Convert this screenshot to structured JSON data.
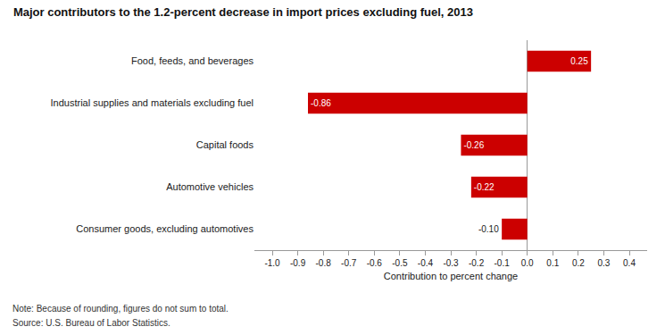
{
  "chart_data": {
    "type": "bar",
    "orientation": "horizontal",
    "title": "Major contributors to the 1.2-percent decrease in import prices excluding fuel, 2013",
    "categories": [
      "Consumer goods, excluding automotives",
      "Automotive vehicles",
      "Capital foods",
      "Industrial supplies and materials excluding fuel",
      "Food, feeds, and beverages"
    ],
    "values": [
      -0.1,
      -0.22,
      -0.26,
      -0.86,
      0.25
    ],
    "value_labels": [
      "-0.10",
      "-0.22",
      "-0.26",
      "-0.86",
      "0.25"
    ],
    "data_labels": true,
    "color": "#cc0000",
    "xlabel": "Contribution to percent change",
    "xlim": [
      -1.07,
      0.47
    ],
    "xticks": [
      {
        "value": -1.0,
        "label": "-1.0"
      },
      -0.9,
      -0.8,
      -0.7,
      -0.6,
      -0.5,
      -0.4,
      -0.3,
      -0.2,
      -0.1,
      {
        "value": 0.0,
        "label": "0.0"
      },
      0.1,
      0.2,
      0.3,
      0.4
    ],
    "annotations": [
      "Note: Because of rounding, figures do not sum to total.",
      "Source: U.S. Bureau of Labor Statistics."
    ],
    "grid": false
  }
}
